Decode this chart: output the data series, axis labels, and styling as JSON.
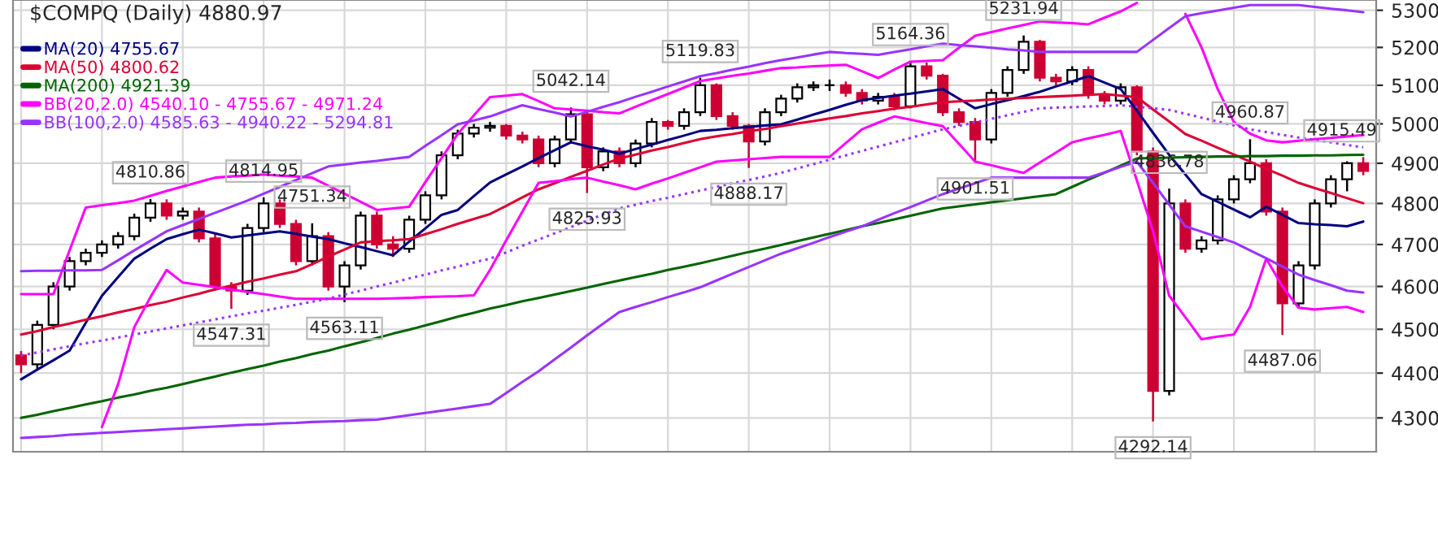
{
  "chart_data": {
    "type": "candlestick",
    "title": "$COMPQ (Daily) 4880.97",
    "categories": [
      null,
      null,
      null,
      null,
      null,
      null,
      null,
      null,
      null,
      null,
      null,
      null,
      null,
      null,
      null,
      null,
      null,
      null,
      null,
      null,
      null,
      null,
      null,
      null,
      null,
      null,
      null,
      null,
      null,
      null,
      null,
      null,
      null,
      null,
      null,
      null,
      null,
      null,
      null,
      null,
      null,
      null,
      null,
      null,
      null,
      null,
      null,
      null,
      null,
      null,
      null,
      null,
      null,
      null,
      null,
      null,
      null,
      null,
      null,
      null,
      null,
      null,
      null,
      null,
      null,
      null,
      null,
      null,
      null,
      null,
      null,
      null,
      null,
      null,
      null,
      null,
      null,
      null,
      null,
      null,
      null,
      null,
      null,
      null
    ],
    "ohlc": [
      [
        4440,
        4450,
        4400,
        4420
      ],
      [
        4420,
        4520,
        4410,
        4510
      ],
      [
        4510,
        4610,
        4500,
        4600
      ],
      [
        4600,
        4670,
        4590,
        4660
      ],
      [
        4660,
        4690,
        4650,
        4680
      ],
      [
        4680,
        4710,
        4670,
        4700
      ],
      [
        4700,
        4730,
        4690,
        4720
      ],
      [
        4720,
        4775,
        4710,
        4765
      ],
      [
        4765,
        4810.86,
        4755,
        4800
      ],
      [
        4800,
        4810,
        4760,
        4770
      ],
      [
        4770,
        4790,
        4760,
        4780
      ],
      [
        4780,
        4790,
        4705,
        4715
      ],
      [
        4715,
        4725,
        4590,
        4600
      ],
      [
        4600,
        4610,
        4547.31,
        4590
      ],
      [
        4590,
        4750,
        4580,
        4740
      ],
      [
        4740,
        4814.95,
        4730,
        4800
      ],
      [
        4800,
        4810,
        4740,
        4750
      ],
      [
        4750,
        4760,
        4650,
        4660
      ],
      [
        4660,
        4751.34,
        4650,
        4720
      ],
      [
        4720,
        4730,
        4590,
        4600
      ],
      [
        4600,
        4660,
        4563.11,
        4650
      ],
      [
        4650,
        4780,
        4640,
        4770
      ],
      [
        4770,
        4780,
        4690,
        4700
      ],
      [
        4700,
        4720,
        4670,
        4690
      ],
      [
        4690,
        4770,
        4680,
        4760
      ],
      [
        4760,
        4830,
        4750,
        4820
      ],
      [
        4820,
        4930,
        4810,
        4920
      ],
      [
        4920,
        4985,
        4910,
        4975
      ],
      [
        4975,
        5000,
        4965,
        4990
      ],
      [
        4990,
        5005,
        4980,
        4995
      ],
      [
        4995,
        5000,
        4960,
        4970
      ],
      [
        4970,
        4980,
        4950,
        4960
      ],
      [
        4960,
        4970,
        4890,
        4900
      ],
      [
        4900,
        4970,
        4890,
        4960
      ],
      [
        4960,
        5042.14,
        4950,
        5025
      ],
      [
        5025,
        5030,
        4825.93,
        4890
      ],
      [
        4890,
        4940,
        4880,
        4930
      ],
      [
        4930,
        4940,
        4890,
        4900
      ],
      [
        4900,
        4960,
        4890,
        4950
      ],
      [
        4950,
        5015,
        4940,
        5005
      ],
      [
        5005,
        5010,
        4985,
        4995
      ],
      [
        4995,
        5040,
        4985,
        5030
      ],
      [
        5030,
        5119.83,
        5020,
        5100
      ],
      [
        5100,
        5105,
        5010,
        5020
      ],
      [
        5020,
        5030,
        4985,
        4995
      ],
      [
        4995,
        5000,
        4888.17,
        4955
      ],
      [
        4955,
        5040,
        4945,
        5030
      ],
      [
        5030,
        5075,
        5020,
        5065
      ],
      [
        5065,
        5105,
        5055,
        5095
      ],
      [
        5095,
        5110,
        5085,
        5100
      ],
      [
        5100,
        5115,
        5085,
        5100
      ],
      [
        5100,
        5110,
        5070,
        5080
      ],
      [
        5080,
        5090,
        5050,
        5060
      ],
      [
        5060,
        5080,
        5050,
        5070
      ],
      [
        5070,
        5080,
        5035,
        5045
      ],
      [
        5045,
        5164.36,
        5040,
        5150
      ],
      [
        5150,
        5160,
        5115,
        5125
      ],
      [
        5125,
        5130,
        5020,
        5030
      ],
      [
        5030,
        5040,
        4995,
        5005
      ],
      [
        5005,
        5015,
        4901.51,
        4960
      ],
      [
        4960,
        5090,
        4950,
        5080
      ],
      [
        5080,
        5150,
        5070,
        5140
      ],
      [
        5140,
        5231.94,
        5130,
        5215
      ],
      [
        5215,
        5220,
        5110,
        5120
      ],
      [
        5120,
        5130,
        5100,
        5110
      ],
      [
        5110,
        5150,
        5100,
        5140
      ],
      [
        5140,
        5150,
        5065,
        5075
      ],
      [
        5075,
        5085,
        5050,
        5060
      ],
      [
        5060,
        5105,
        5050,
        5095
      ],
      [
        5095,
        5100,
        4920,
        4930
      ],
      [
        4930,
        4940,
        4292.14,
        4360
      ],
      [
        4360,
        4836.78,
        4350,
        4800
      ],
      [
        4800,
        4810,
        4680,
        4690
      ],
      [
        4690,
        4720,
        4680,
        4710
      ],
      [
        4710,
        4820,
        4700,
        4810
      ],
      [
        4810,
        4870,
        4800,
        4860
      ],
      [
        4860,
        4960.87,
        4850,
        4900
      ],
      [
        4900,
        4910,
        4770,
        4780
      ],
      [
        4780,
        4790,
        4487.06,
        4560
      ],
      [
        4560,
        4660,
        4550,
        4650
      ],
      [
        4650,
        4810,
        4640,
        4800
      ],
      [
        4800,
        4870,
        4790,
        4860
      ],
      [
        4860,
        4905,
        4830,
        4900
      ],
      [
        4900,
        4915.49,
        4870,
        4880.97
      ]
    ],
    "colors": [
      "#cc0033",
      "#000000",
      "#000000",
      "#000000",
      "#000000",
      "#000000",
      "#000000",
      "#000000",
      "#000000",
      "#cc0033",
      "#000000",
      "#cc0033",
      "#cc0033",
      "#cc0033",
      "#000000",
      "#000000",
      "#cc0033",
      "#cc0033",
      "#000000",
      "#cc0033",
      "#000000",
      "#000000",
      "#cc0033",
      "#cc0033",
      "#000000",
      "#000000",
      "#000000",
      "#000000",
      "#000000",
      "#000000",
      "#cc0033",
      "#cc0033",
      "#cc0033",
      "#000000",
      "#000000",
      "#cc0033",
      "#000000",
      "#cc0033",
      "#000000",
      "#000000",
      "#cc0033",
      "#000000",
      "#000000",
      "#cc0033",
      "#cc0033",
      "#cc0033",
      "#000000",
      "#000000",
      "#000000",
      "#000000",
      "#000000",
      "#cc0033",
      "#cc0033",
      "#000000",
      "#cc0033",
      "#000000",
      "#cc0033",
      "#cc0033",
      "#cc0033",
      "#cc0033",
      "#000000",
      "#000000",
      "#000000",
      "#cc0033",
      "#cc0033",
      "#000000",
      "#cc0033",
      "#cc0033",
      "#000000",
      "#cc0033",
      "#cc0033",
      "#000000",
      "#cc0033",
      "#000000",
      "#000000",
      "#000000",
      "#000000",
      "#cc0033",
      "#cc0033",
      "#000000",
      "#000000",
      "#000000",
      "#000000",
      "#cc0033"
    ],
    "value_labels": [
      null,
      null,
      null,
      null,
      null,
      null,
      null,
      null,
      "4810.86",
      null,
      null,
      null,
      null,
      "4547.31",
      null,
      "4814.95",
      null,
      null,
      "4751.34",
      null,
      "4563.11",
      null,
      null,
      null,
      null,
      null,
      null,
      null,
      null,
      null,
      null,
      null,
      null,
      null,
      "5042.14",
      "4825.93",
      null,
      null,
      null,
      null,
      null,
      null,
      "5119.83",
      null,
      null,
      "4888.17",
      null,
      null,
      null,
      null,
      null,
      null,
      null,
      null,
      null,
      "5164.36",
      null,
      null,
      null,
      "4901.51",
      null,
      null,
      "5231.94",
      null,
      null,
      null,
      null,
      null,
      null,
      null,
      "4292.14",
      "4836.78",
      null,
      null,
      null,
      null,
      "4960.87",
      null,
      "4487.06",
      null,
      null,
      null,
      null,
      "4915.49"
    ],
    "series": [
      {
        "type": "line",
        "name": "MA(20) 4755.67",
        "color": "#000080",
        "values": [
          4386,
          4408,
          4429,
          4451,
          4515,
          4578,
          4622,
          4666,
          4690,
          4713,
          4725,
          4736,
          4727,
          4717,
          4722,
          4727,
          4732,
          4726,
          4719,
          4713,
          4703,
          4694,
          4684,
          4674,
          4707,
          4739,
          4772,
          4784,
          4818,
          4852,
          4872,
          4892,
          4913,
          4933,
          4953,
          4943,
          4934,
          4924,
          4936,
          4947,
          4959,
          4970,
          4982,
          4985,
          4989,
          4992,
          4996,
          4999,
          5011,
          5024,
          5036,
          5049,
          5061,
          5067,
          5073,
          5078,
          5084,
          5090,
          5065,
          5040,
          5051,
          5061,
          5072,
          5083,
          5097,
          5110,
          5124,
          5107,
          5090,
          5034,
          4977,
          4921,
          4872,
          4823,
          4804,
          4785,
          4766,
          4792,
          4772,
          4752,
          4749,
          4747,
          4744,
          4755.67
        ]
      },
      {
        "type": "line",
        "name": "MA(50) 4800.62",
        "color": "#dd0033",
        "values": [
          4488,
          4496,
          4505,
          4513,
          4522,
          4530,
          4539,
          4547,
          4556,
          4564,
          4574,
          4583,
          4593,
          4602,
          4611,
          4619,
          4628,
          4636,
          4653,
          4671,
          4688,
          4705,
          4708,
          4710,
          4713,
          4725,
          4737,
          4750,
          4762,
          4774,
          4794,
          4815,
          4835,
          4850,
          4866,
          4881,
          4897,
          4912,
          4922,
          4932,
          4941,
          4951,
          4961,
          4968,
          4974,
          4981,
          4987,
          4994,
          5001,
          5007,
          5014,
          5020,
          5027,
          5033,
          5039,
          5044,
          5050,
          5056,
          5058,
          5060,
          5063,
          5065,
          5067,
          5069,
          5071,
          5073,
          5075,
          5077,
          5073,
          5069,
          5037,
          5006,
          4974,
          4957,
          4939,
          4922,
          4904,
          4886,
          4869,
          4851,
          4838,
          4826,
          4813,
          4800.62
        ]
      },
      {
        "type": "line",
        "name": "MA(200) 4921.39",
        "color": "#006400",
        "values": [
          4300,
          4307,
          4315,
          4322,
          4330,
          4337,
          4345,
          4352,
          4360,
          4367,
          4375,
          4384,
          4392,
          4401,
          4409,
          4417,
          4426,
          4434,
          4443,
          4451,
          4461,
          4470,
          4480,
          4490,
          4499,
          4509,
          4519,
          4529,
          4538,
          4548,
          4556,
          4565,
          4573,
          4581,
          4589,
          4597,
          4606,
          4614,
          4622,
          4630,
          4639,
          4647,
          4655,
          4664,
          4673,
          4682,
          4690,
          4699,
          4708,
          4717,
          4726,
          4735,
          4744,
          4752,
          4761,
          4770,
          4779,
          4788,
          4793,
          4798,
          4803,
          4808,
          4813,
          4818,
          4823,
          4841,
          4859,
          4876,
          4894,
          4912,
          4913,
          4914,
          4915,
          4916,
          4917,
          4917,
          4918,
          4918,
          4919,
          4919,
          4920,
          4920,
          4921,
          4921.39
        ]
      },
      {
        "type": "line",
        "name": "BB(20,2.0) 4540.10 - 4755.67 - 4971.24",
        "color": "#ff00ff",
        "values": [
          4582,
          4582,
          4582,
          4686,
          4790,
          4796,
          4801,
          4807,
          4819,
          4831,
          4842,
          4853,
          4864,
          4867,
          4869,
          4872,
          4869,
          4867,
          4864,
          4844,
          4824,
          4804,
          4784,
          4788,
          4792,
          4853,
          4913,
          4974,
          5022,
          5069,
          5073,
          5077,
          5059,
          5040,
          5037,
          5034,
          5030,
          5027,
          5044,
          5061,
          5077,
          5094,
          5111,
          5118,
          5125,
          5131,
          5138,
          5145,
          5147,
          5150,
          5152,
          5154,
          5137,
          5119,
          5141,
          5162,
          5164,
          5166,
          5199,
          5231,
          5241,
          5251,
          5260,
          5270,
          5267,
          5265,
          5262,
          5280,
          5297,
          5320,
          null,
          null,
          5290,
          5200,
          5090,
          5005,
          4975,
          4958,
          4953,
          4957,
          4961,
          4964,
          4968,
          4971.24
        ]
      },
      {
        "type": "line",
        "color": "#ff00ff",
        "values": [
          null,
          null,
          null,
          null,
          null,
          4280,
          4375,
          4505,
          4575,
          4639,
          4609,
          4604,
          4598,
          4593,
          4587,
          4582,
          4576,
          4571,
          4571,
          4571,
          4571,
          4571,
          4571,
          4572,
          4573,
          4575,
          4576,
          4577,
          4579,
          4639,
          4710,
          4780,
          4851,
          4855,
          4860,
          4864,
          4854,
          4845,
          4835,
          4849,
          4862,
          4876,
          4890,
          4904,
          4907,
          4910,
          4913,
          4916,
          4916,
          4916,
          4916,
          4951,
          4986,
          5003,
          5019,
          5011,
          5002,
          4994,
          4949,
          4904,
          4895,
          4885,
          4876,
          4902,
          4927,
          4953,
          4963,
          4972,
          4982,
          4857,
          4732,
          4578,
          4528,
          4477,
          4483,
          4488,
          4552,
          4666,
          4600,
          4550,
          4546,
          4549,
          4552,
          4540.1
        ]
      },
      {
        "type": "line",
        "name": "BB(100,2.0) 4585.63 - 4940.22 - 5294.81",
        "color": "#9933ff",
        "values": [
          4636,
          4637,
          4637,
          4638,
          4638,
          4639,
          4662,
          4686,
          4709,
          4732,
          4747,
          4762,
          4777,
          4792,
          4807,
          4824,
          4841,
          4858,
          4875,
          4892,
          4897,
          4902,
          4906,
          4911,
          4916,
          4944,
          4971,
          4999,
          5009,
          5019,
          5034,
          5048,
          5038,
          5029,
          5019,
          5031,
          5044,
          5056,
          5070,
          5083,
          5097,
          5110,
          5124,
          5132,
          5141,
          5149,
          5158,
          5166,
          5173,
          5181,
          5188,
          5185,
          5183,
          5180,
          5188,
          5195,
          5203,
          5210,
          5206,
          5203,
          5199,
          5195,
          5192,
          5188,
          5188,
          5188,
          5188,
          5188,
          5188,
          5188,
          5220,
          5252,
          5284,
          5292,
          5299,
          5307,
          5314,
          5314,
          5314,
          5314,
          5309,
          5304,
          5300,
          5294.81
        ]
      },
      {
        "type": "line",
        "color": "#9933ff",
        "line_style": "dotted",
        "values": [
          4440,
          4447,
          4454,
          4461,
          4468,
          4474,
          4481,
          4488,
          4495,
          4502,
          4509,
          4516,
          4523,
          4530,
          4537,
          4543,
          4550,
          4557,
          4564,
          4571,
          4581,
          4590,
          4600,
          4609,
          4619,
          4628,
          4638,
          4647,
          4657,
          4666,
          4681,
          4697,
          4712,
          4727,
          4742,
          4758,
          4773,
          4788,
          4797,
          4806,
          4814,
          4823,
          4832,
          4841,
          4850,
          4858,
          4867,
          4876,
          4887,
          4898,
          4909,
          4920,
          4931,
          4942,
          4953,
          4964,
          4975,
          4986,
          4995,
          5004,
          5013,
          5022,
          5031,
          5040,
          5042,
          5043,
          5045,
          5046,
          5048,
          5044,
          5040,
          5036,
          5026,
          5016,
          5006,
          4996,
          4986,
          4979,
          4972,
          4965,
          4959,
          4953,
          4946,
          4940.22
        ]
      },
      {
        "type": "line",
        "color": "#9933ff",
        "values": [
          4256,
          4258,
          4260,
          4263,
          4265,
          4267,
          4269,
          4271,
          4273,
          4275,
          4277,
          4279,
          4281,
          4283,
          4285,
          4286,
          4288,
          4289,
          4291,
          4292,
          4293,
          4295,
          4296,
          4301,
          4306,
          4311,
          4316,
          4321,
          4326,
          4331,
          4355,
          4380,
          4404,
          4431,
          4458,
          4486,
          4513,
          4540,
          4552,
          4563,
          4575,
          4586,
          4598,
          4614,
          4630,
          4646,
          4662,
          4678,
          4691,
          4704,
          4718,
          4731,
          4744,
          4760,
          4776,
          4791,
          4807,
          4823,
          4837,
          4850,
          4864,
          4864,
          4864,
          4864,
          4864,
          4864,
          4864,
          4877,
          4891,
          4904,
          4851,
          4797,
          4744,
          4731,
          4718,
          4705,
          4686,
          4667,
          4647,
          4628,
          4615,
          4603,
          4590,
          4585.63
        ]
      }
    ],
    "log": true,
    "ylim": [
      4226,
      5328
    ],
    "yticks": [
      4300,
      4400,
      4500,
      4600,
      4700,
      4800,
      4900,
      5000,
      5100,
      5200,
      5300
    ],
    "tick_labels": "y",
    "grid": true,
    "legend": "top left"
  }
}
